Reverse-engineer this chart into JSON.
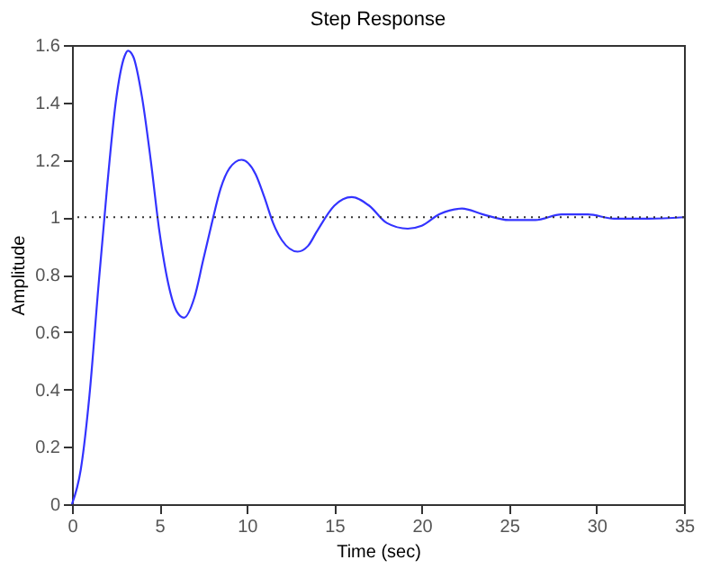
{
  "chart_data": {
    "type": "line",
    "title": "Step Response",
    "xlabel": "Time (sec)",
    "ylabel": "Amplitude",
    "x": [
      0,
      0.5,
      1,
      1.5,
      2,
      2.5,
      3,
      3.2,
      3.5,
      4,
      4.5,
      5,
      5.5,
      6,
      6.4,
      7,
      7.5,
      8,
      8.5,
      9,
      9.7,
      10.5,
      11,
      11.5,
      12,
      12.9,
      13.5,
      14,
      15,
      16,
      17,
      18,
      19.2,
      20,
      21,
      22.3,
      23.5,
      25,
      26.5,
      28,
      29.5,
      31,
      33,
      35
    ],
    "series": [
      {
        "color": "#3333ff",
        "values": [
          0,
          0.12,
          0.38,
          0.75,
          1.1,
          1.4,
          1.56,
          1.58,
          1.56,
          1.42,
          1.2,
          0.95,
          0.77,
          0.67,
          0.65,
          0.72,
          0.85,
          0.98,
          1.1,
          1.17,
          1.2,
          1.15,
          1.07,
          0.98,
          0.92,
          0.88,
          0.9,
          0.95,
          1.04,
          1.07,
          1.04,
          0.98,
          0.96,
          0.97,
          1.01,
          1.03,
          1.01,
          0.99,
          0.99,
          1.01,
          1.01,
          0.995,
          0.995,
          1.0
        ]
      }
    ],
    "xlim": [
      0,
      35
    ],
    "xticks": [
      0,
      5,
      10,
      15,
      20,
      25,
      30,
      35
    ],
    "ylim": [
      0,
      1.6
    ],
    "yticks": [
      0,
      0.2,
      0.4,
      0.6,
      0.8,
      1,
      1.2,
      1.4,
      1.6
    ],
    "ref_lines": [
      {
        "axis": "y",
        "value": 1,
        "color": "#333333",
        "line_style": "dotted"
      }
    ],
    "grid": false,
    "line_style": "solid",
    "marker": "none"
  }
}
